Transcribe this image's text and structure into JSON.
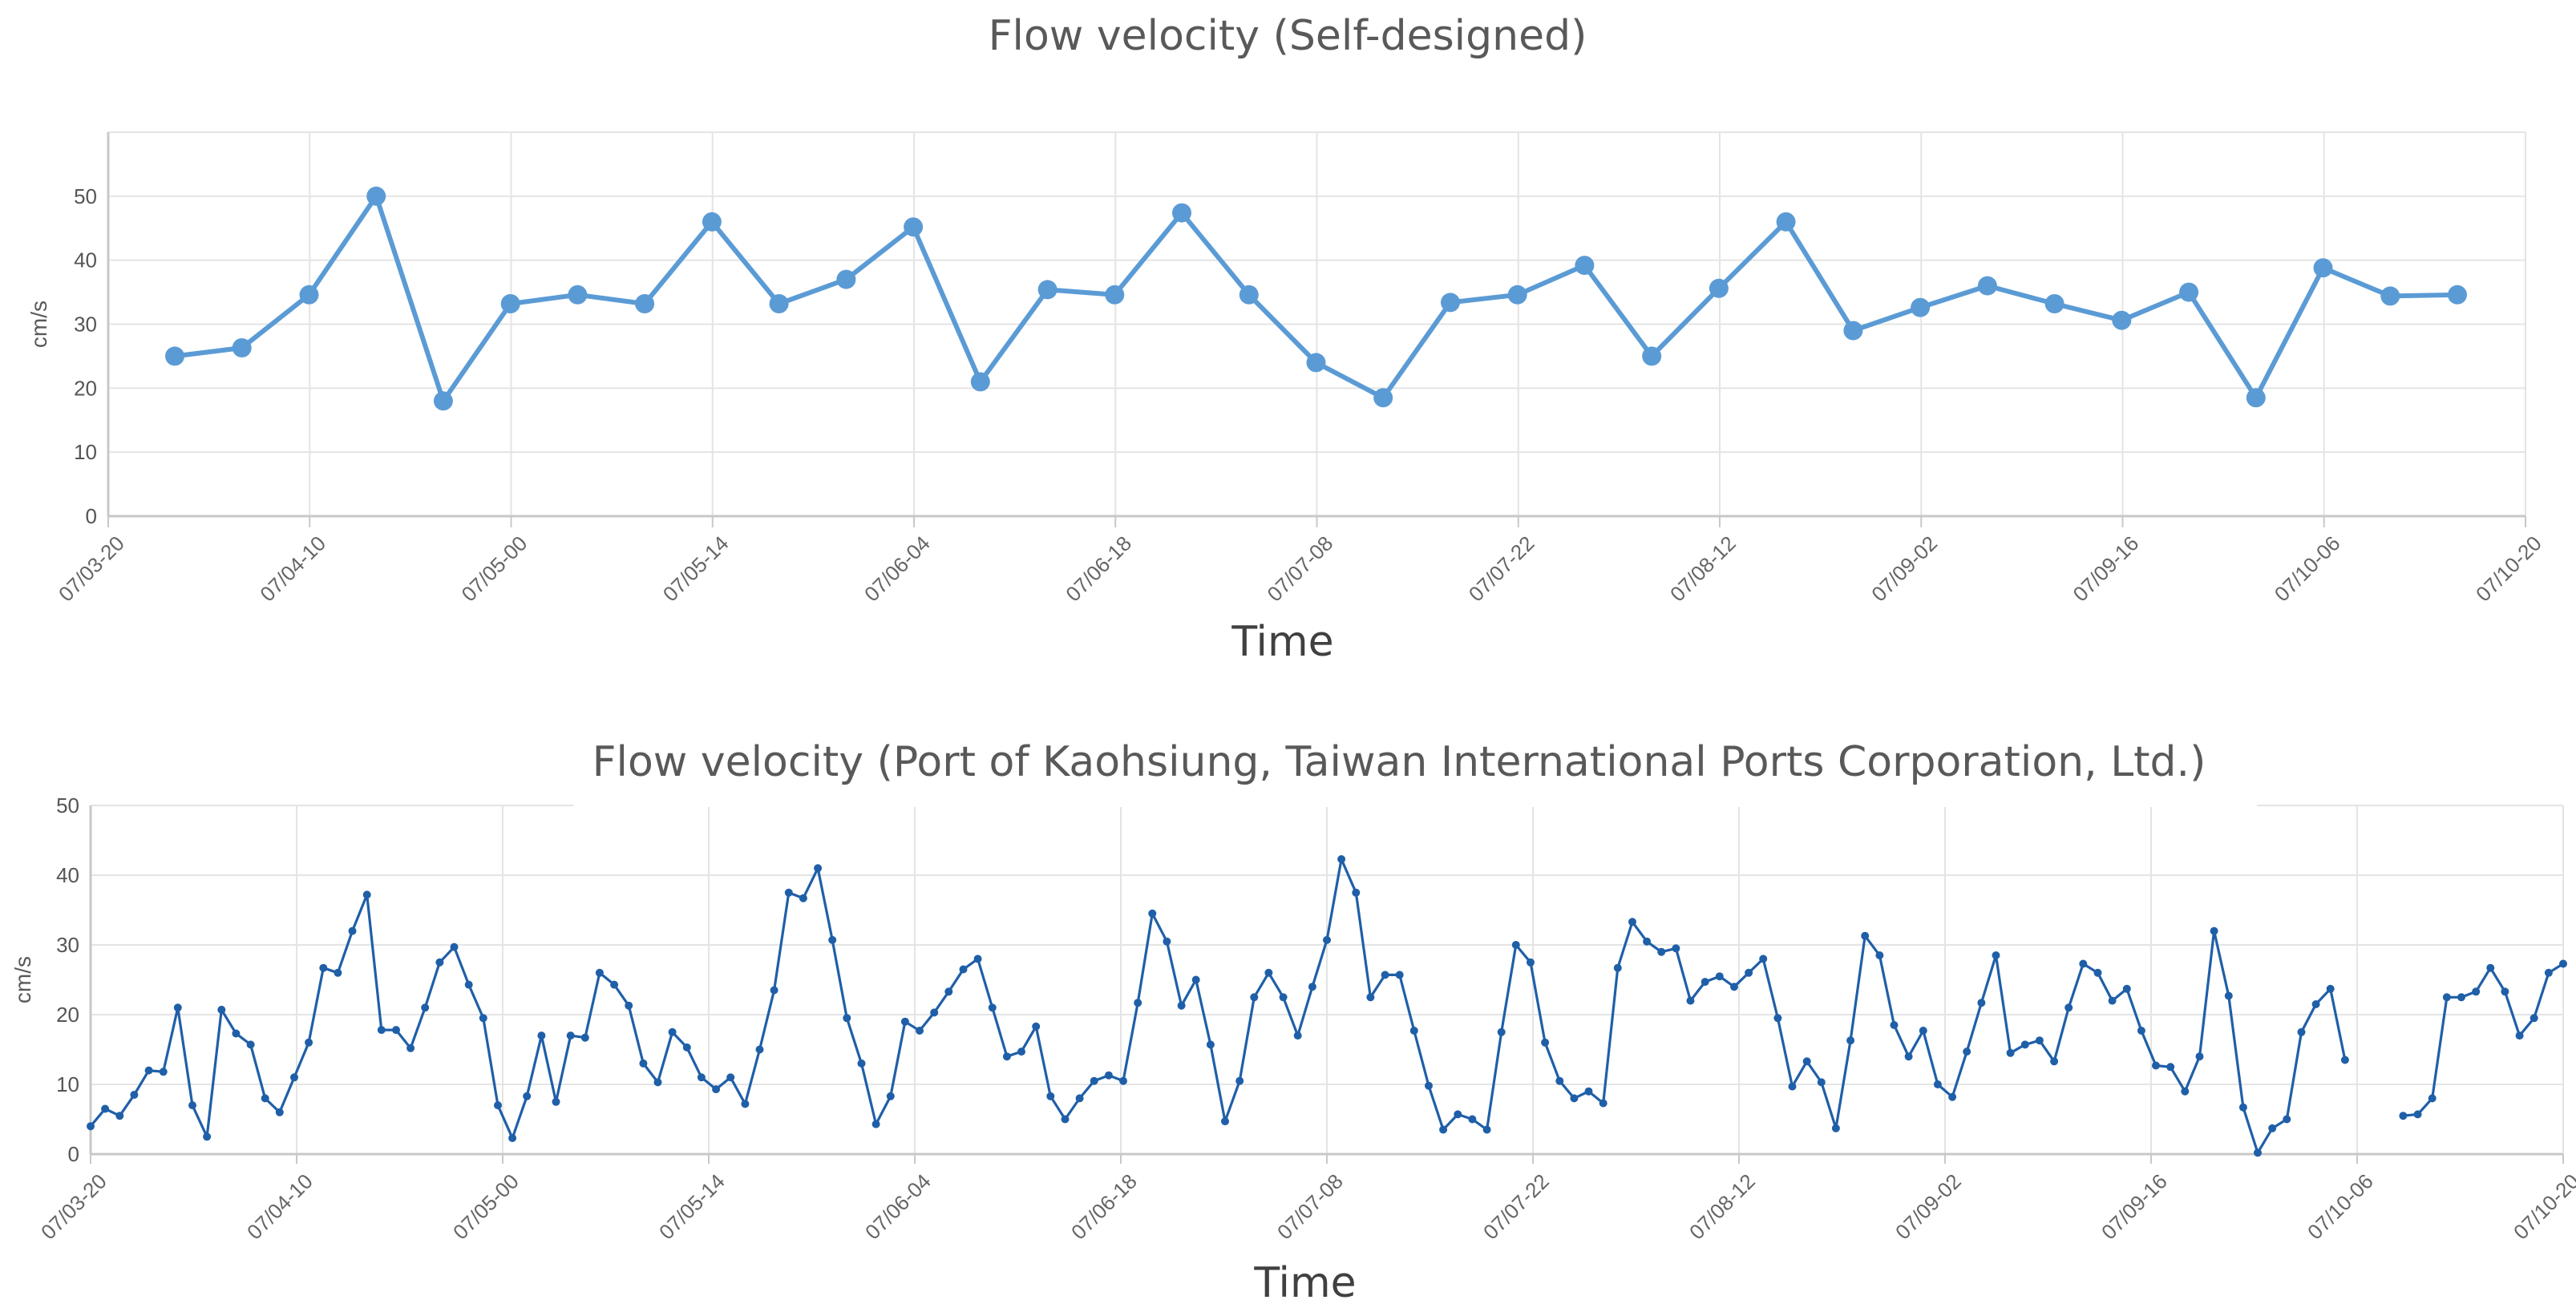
{
  "chart_data": [
    {
      "type": "line",
      "title": "Flow velocity (Self-designed)",
      "xlabel": "Time",
      "ylabel": "cm/s",
      "ylim": [
        0,
        60
      ],
      "yticks": [
        0,
        10,
        20,
        30,
        40,
        50
      ],
      "grid": true,
      "x_tick_labels": [
        "07/03-20",
        "07/04-10",
        "07/05-00",
        "07/05-14",
        "07/06-04",
        "07/06-18",
        "07/07-08",
        "07/07-22",
        "07/08-12",
        "07/09-02",
        "07/09-16",
        "07/10-06",
        "07/10-20"
      ],
      "color": "#5b9bd5",
      "series": [
        {
          "values": [
            25,
            26.3,
            34.6,
            50,
            18,
            33.2,
            34.6,
            33.2,
            46,
            33.2,
            37,
            45.2,
            21,
            35.4,
            34.6,
            47.4,
            34.6,
            24,
            18.5,
            33.4,
            34.6,
            39.2,
            25,
            35.6,
            46,
            29,
            32.6,
            36,
            33.2,
            30.6,
            35,
            18.5,
            38.8,
            34.4,
            34.6
          ]
        }
      ]
    },
    {
      "type": "line",
      "title": "Flow velocity (Port of Kaohsiung, Taiwan International Ports Corporation, Ltd.)",
      "xlabel": "Time",
      "ylabel": "cm/s",
      "ylim": [
        0,
        50
      ],
      "yticks": [
        0,
        10,
        20,
        30,
        40,
        50
      ],
      "grid": true,
      "x_tick_labels": [
        "07/03-20",
        "07/04-10",
        "07/05-00",
        "07/05-14",
        "07/06-04",
        "07/06-18",
        "07/07-08",
        "07/07-22",
        "07/08-12",
        "07/09-02",
        "07/09-16",
        "07/10-06",
        "07/10-20"
      ],
      "color": "#1f5fa8",
      "series": [
        {
          "values": [
            4,
            6.5,
            5.5,
            8.5,
            12,
            11.8,
            21,
            7,
            2.5,
            20.7,
            17.3,
            15.7,
            8,
            6,
            11,
            16,
            26.7,
            26,
            32,
            37.2,
            17.8,
            17.8,
            15.2,
            21,
            27.5,
            29.7,
            24.3,
            19.5,
            7,
            2.3,
            8.3,
            17,
            7.5,
            17,
            16.7,
            26,
            24.3,
            21.3,
            13,
            10.3,
            17.5,
            15.3,
            11,
            9.3,
            11,
            7.2,
            15,
            23.5,
            37.5,
            36.7,
            41,
            30.7,
            19.5,
            13,
            4.3,
            8.3,
            19,
            17.7,
            20.3,
            23.3,
            26.5,
            28,
            21,
            14,
            14.7,
            18.3,
            8.3,
            5,
            8,
            10.5,
            11.3,
            10.5,
            21.7,
            34.5,
            30.5,
            21.3,
            25,
            15.7,
            4.7,
            10.5,
            22.5,
            26,
            22.5,
            17,
            24,
            30.7,
            42.3,
            37.5,
            22.5,
            25.7,
            25.7,
            17.7,
            9.8,
            3.5,
            5.7,
            5,
            3.5,
            17.5,
            30,
            27.5,
            16,
            10.5,
            8,
            9,
            7.3,
            26.7,
            33.3,
            30.5,
            29,
            29.5,
            22,
            24.7,
            25.5,
            24,
            26,
            28,
            19.5,
            9.7,
            13.3,
            10.3,
            3.7,
            16.3,
            31.3,
            28.5,
            18.5,
            14,
            17.7,
            10,
            8.2,
            14.7,
            21.7,
            28.5,
            14.5,
            15.7,
            16.3,
            13.3,
            21,
            27.3,
            26,
            22,
            23.7,
            17.7,
            12.7,
            12.5,
            9,
            14,
            32,
            22.7,
            6.7,
            0.2,
            3.7,
            5,
            17.5,
            21.5,
            23.7,
            13.5,
            null,
            null,
            null,
            5.5,
            5.7,
            8,
            22.5,
            22.5,
            23.3,
            26.7,
            23.3,
            17,
            19.5,
            26,
            27.3
          ]
        }
      ]
    }
  ]
}
